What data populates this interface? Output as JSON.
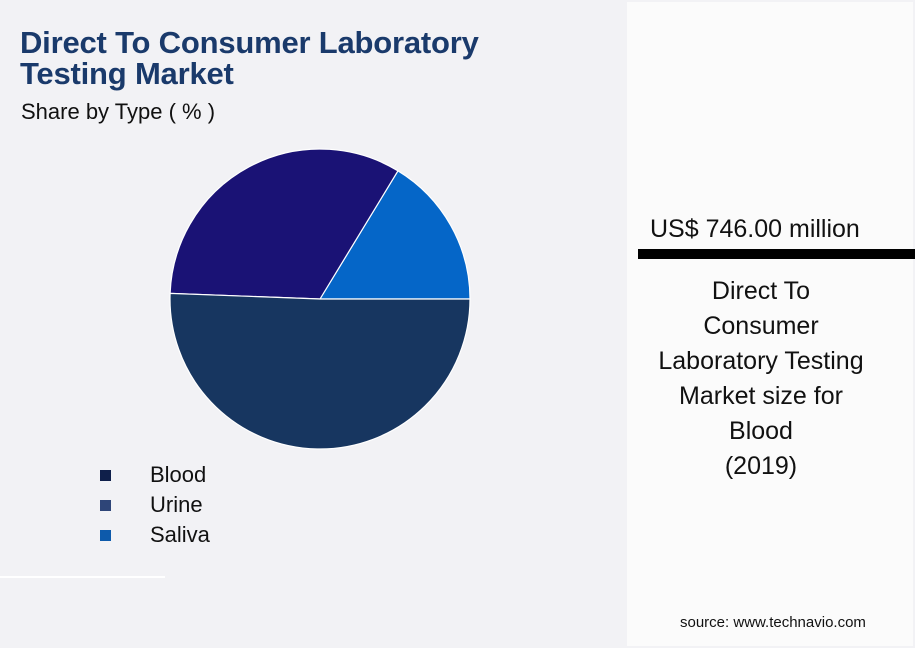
{
  "header": {
    "title_line1": "Direct To Consumer Laboratory",
    "title_line2": "Testing Market",
    "subtitle": "Share by Type ( % )"
  },
  "legend": {
    "items": [
      {
        "label": "Blood",
        "color": "#0f1f4a"
      },
      {
        "label": "Urine",
        "color": "#2e4578"
      },
      {
        "label": "Saliva",
        "color": "#0d5aab"
      }
    ]
  },
  "kpi": {
    "value": "US$ 746.00 million",
    "description_lines": [
      "Direct To",
      "Consumer",
      "Laboratory Testing",
      "Market size for",
      "Blood",
      "(2019)"
    ]
  },
  "footer": {
    "source": "source: www.technavio.com"
  },
  "chart_data": {
    "type": "pie",
    "title": "Direct To Consumer Laboratory Testing Market",
    "subtitle": "Share by Type ( % )",
    "categories": [
      "Blood",
      "Urine",
      "Saliva"
    ],
    "values": [
      50.6,
      33.1,
      16.3
    ],
    "colors": [
      "#173660",
      "#1a1275",
      "#0566c8"
    ],
    "start_angle_deg": 0,
    "direction": "counterclockwise",
    "legend_position": "bottom-left",
    "annotation": "US$ 746.00 million — Direct To Consumer Laboratory Testing Market size for Blood (2019)"
  }
}
